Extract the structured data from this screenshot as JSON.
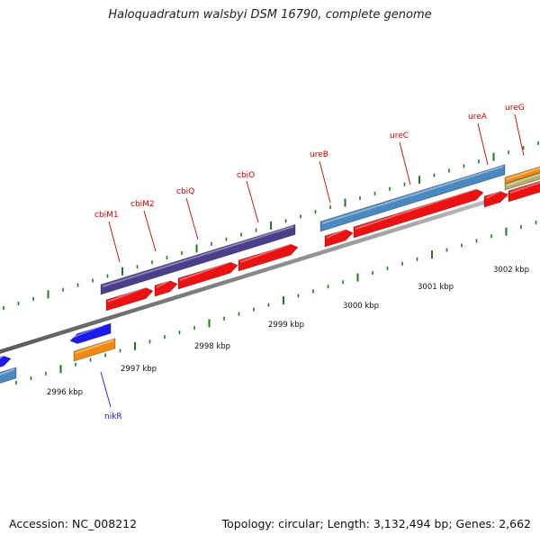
{
  "title": "Haloquadratum walsbyi DSM 16790, complete genome",
  "footer": {
    "accession": "Accession: NC_008212",
    "summary": "Topology: circular; Length: 3,132,494 bp; Genes: 2,662"
  },
  "colors": {
    "backbone": "#8a8a8a",
    "tick": "#1f7a1f",
    "cds_red": "#ee1111",
    "cds_blue": "#1a1aee",
    "cds_steel": "#4a88c0",
    "cds_purple": "#4b3f8c",
    "cds_orange": "#f08a10",
    "cds_khaki": "#b5ab6a",
    "label_red": "#cc0000",
    "label_blue": "#1a1acc"
  },
  "scale_labels": [
    "2996 kbp",
    "2997 kbp",
    "2998 kbp",
    "2999 kbp",
    "3000 kbp",
    "3001 kbp",
    "3002 kbp"
  ],
  "gene_labels": [
    {
      "name": "cbiM1",
      "color": "red"
    },
    {
      "name": "cbiM2",
      "color": "red"
    },
    {
      "name": "cbiQ",
      "color": "red"
    },
    {
      "name": "cbiO",
      "color": "red"
    },
    {
      "name": "ureB",
      "color": "red"
    },
    {
      "name": "ureC",
      "color": "red"
    },
    {
      "name": "ureA",
      "color": "red"
    },
    {
      "name": "ureG",
      "color": "red"
    },
    {
      "name": "nikR",
      "color": "blue"
    }
  ]
}
